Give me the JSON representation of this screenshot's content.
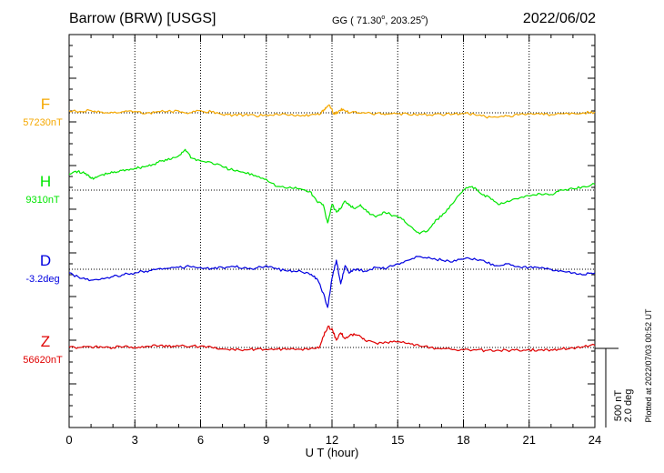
{
  "header": {
    "station": "Barrow (BRW)  [USGS]",
    "coords_prefix": "GG ( 71.30",
    "coords_mid": ", 203.25",
    "coords_suffix": ")",
    "degree_mark": "o",
    "date": "2022/06/02"
  },
  "plotted_note": "Plotted at 2022/07/03 00:52 UT",
  "scale_bar": {
    "line1": "500 nT",
    "line2": "2.0 deg"
  },
  "colors": {
    "F": "#f5a800",
    "H": "#00e600",
    "D": "#0000e0",
    "Z": "#e00000"
  },
  "chart_data": {
    "type": "line",
    "xlabel": "U T (hour)",
    "xlim": [
      0,
      24
    ],
    "x_ticks": [
      "0",
      "3",
      "6",
      "9",
      "12",
      "15",
      "18",
      "21",
      "24"
    ],
    "series": [
      {
        "name": "F",
        "baseline_label": "57230nT",
        "color": "#f5a800",
        "x": [
          0,
          0.5,
          1,
          1.5,
          2,
          2.5,
          3,
          3.5,
          4,
          4.5,
          5,
          5.5,
          6,
          6.5,
          7,
          7.5,
          8,
          8.5,
          9,
          9.5,
          10,
          10.5,
          11,
          11.5,
          11.7,
          11.9,
          12.1,
          12.3,
          12.5,
          12.8,
          13,
          13.5,
          14,
          14.5,
          15,
          15.5,
          16,
          16.5,
          17,
          17.5,
          18,
          18.5,
          19,
          19.5,
          20,
          20.5,
          21,
          21.5,
          22,
          22.5,
          23,
          23.5,
          24
        ],
        "values": [
          30,
          20,
          30,
          10,
          0,
          15,
          20,
          -10,
          15,
          20,
          25,
          0,
          30,
          10,
          -25,
          -30,
          -30,
          -40,
          -30,
          -20,
          -35,
          -40,
          -30,
          -10,
          70,
          100,
          -20,
          20,
          50,
          -5,
          10,
          -5,
          -10,
          -15,
          -10,
          -25,
          -15,
          -30,
          -25,
          -20,
          -10,
          -20,
          -55,
          -60,
          -45,
          -30,
          -15,
          -20,
          -25,
          -10,
          -5,
          0,
          10
        ]
      },
      {
        "name": "H",
        "baseline_label": "9310nT",
        "color": "#00e600",
        "x": [
          0,
          0.3,
          0.6,
          0.9,
          1.1,
          1.4,
          1.8,
          2.2,
          2.6,
          3,
          3.4,
          3.8,
          4.2,
          4.6,
          5,
          5.3,
          5.6,
          6,
          6.5,
          7,
          7.5,
          8,
          8.5,
          9,
          9.5,
          10,
          10.5,
          11,
          11.3,
          11.6,
          11.8,
          12,
          12.2,
          12.4,
          12.6,
          12.8,
          13,
          13.3,
          13.6,
          14,
          14.4,
          14.8,
          15.2,
          15.6,
          16,
          16.4,
          16.8,
          17.2,
          17.6,
          18,
          18.4,
          18.8,
          19.2,
          19.6,
          20,
          20.5,
          21,
          21.5,
          22,
          22.5,
          23,
          23.5,
          24
        ],
        "values": [
          220,
          260,
          240,
          200,
          150,
          200,
          230,
          250,
          280,
          300,
          320,
          350,
          400,
          420,
          470,
          560,
          440,
          400,
          380,
          320,
          270,
          240,
          200,
          150,
          50,
          30,
          20,
          -20,
          -150,
          -200,
          -450,
          -200,
          -300,
          -250,
          -150,
          -200,
          -250,
          -200,
          -300,
          -370,
          -300,
          -350,
          -400,
          -500,
          -600,
          -550,
          -400,
          -300,
          -150,
          0,
          50,
          -50,
          -100,
          -200,
          -150,
          -120,
          -80,
          -50,
          -60,
          0,
          20,
          50,
          80
        ]
      },
      {
        "name": "D",
        "baseline_label": "-3.2deg",
        "color": "#0000e0",
        "x": [
          0,
          0.5,
          1,
          1.5,
          2,
          2.5,
          3,
          3.5,
          4,
          4.5,
          5,
          5.5,
          6,
          6.5,
          7,
          7.5,
          8,
          8.5,
          9,
          9.5,
          10,
          10.5,
          11,
          11.3,
          11.6,
          11.8,
          12,
          12.2,
          12.4,
          12.6,
          12.8,
          13,
          13.5,
          14,
          14.5,
          15,
          15.5,
          16,
          16.5,
          17,
          17.5,
          18,
          18.5,
          19,
          19.5,
          20,
          20.5,
          21,
          21.5,
          22,
          22.5,
          23,
          23.5,
          24
        ],
        "values": [
          -0.2,
          -0.5,
          -0.6,
          -0.5,
          -0.4,
          -0.3,
          -0.2,
          -0.1,
          0,
          0.05,
          0.1,
          0.15,
          0.1,
          0.05,
          0.1,
          0.15,
          0.1,
          0.05,
          0.2,
          0,
          -0.1,
          -0.05,
          -0.3,
          -0.5,
          -1.3,
          -2.1,
          -0.5,
          0.5,
          -0.8,
          0.2,
          -0.2,
          0,
          -0.1,
          0.1,
          0.05,
          0.3,
          0.5,
          0.7,
          0.6,
          0.5,
          0.4,
          0.55,
          0.6,
          0.4,
          0.2,
          0.3,
          0.15,
          0.1,
          0.05,
          0,
          -0.1,
          -0.2,
          -0.3,
          -0.2
        ]
      },
      {
        "name": "Z",
        "baseline_label": "56620nT",
        "color": "#e00000",
        "x": [
          0,
          0.5,
          1,
          1.5,
          2,
          2.5,
          3,
          3.5,
          4,
          4.5,
          5,
          5.5,
          6,
          6.5,
          7,
          7.5,
          8,
          8.5,
          9,
          9.5,
          10,
          10.5,
          11,
          11.4,
          11.6,
          11.8,
          12,
          12.2,
          12.4,
          12.6,
          12.9,
          13.2,
          13.5,
          14,
          14.5,
          15,
          15.5,
          16,
          16.5,
          17,
          17.5,
          18,
          18.5,
          19,
          19.5,
          20,
          20.5,
          21,
          21.5,
          22,
          22.5,
          23,
          23.5,
          24
        ],
        "values": [
          5,
          0,
          10,
          5,
          0,
          10,
          5,
          15,
          20,
          15,
          20,
          10,
          20,
          5,
          -20,
          -25,
          -30,
          -25,
          -30,
          -25,
          -20,
          -25,
          -20,
          -10,
          150,
          280,
          260,
          100,
          200,
          120,
          180,
          170,
          100,
          60,
          70,
          80,
          60,
          20,
          0,
          -20,
          -30,
          -35,
          -30,
          -40,
          -40,
          -40,
          -35,
          -30,
          -35,
          -30,
          -20,
          -5,
          10,
          30
        ]
      }
    ]
  }
}
